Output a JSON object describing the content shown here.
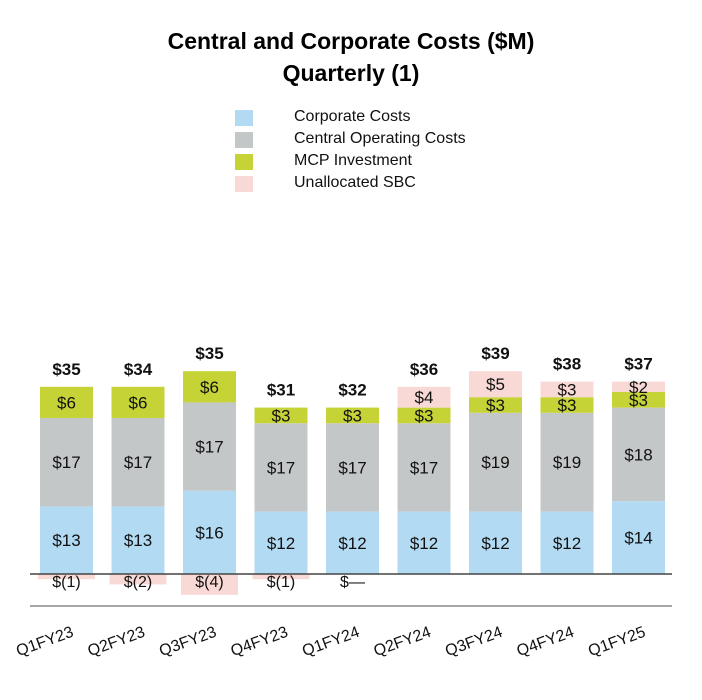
{
  "chart_data": {
    "type": "bar",
    "stacked": true,
    "title": "Central and Corporate Costs ($M)",
    "subtitle": "Quarterly (1)",
    "categories": [
      "Q1FY23",
      "Q2FY23",
      "Q3FY23",
      "Q4FY23",
      "Q1FY24",
      "Q2FY24",
      "Q3FY24",
      "Q4FY24",
      "Q1FY25"
    ],
    "series": [
      {
        "name": "Corporate Costs",
        "color": "#b3daf3",
        "values": [
          13,
          13,
          16,
          12,
          12,
          12,
          12,
          12,
          14
        ],
        "labels": [
          "$13",
          "$13",
          "$16",
          "$12",
          "$12",
          "$12",
          "$12",
          "$12",
          "$14"
        ]
      },
      {
        "name": "Central Operating Costs",
        "color": "#c4c7c7",
        "values": [
          17,
          17,
          17,
          17,
          17,
          17,
          19,
          19,
          18
        ],
        "labels": [
          "$17",
          "$17",
          "$17",
          "$17",
          "$17",
          "$17",
          "$19",
          "$19",
          "$18"
        ]
      },
      {
        "name": "MCP Investment",
        "color": "#c5d337",
        "values": [
          6,
          6,
          6,
          3,
          3,
          3,
          3,
          3,
          3
        ],
        "labels": [
          "$6",
          "$6",
          "$6",
          "$3",
          "$3",
          "$3",
          "$3",
          "$3",
          "$3"
        ]
      },
      {
        "name": "Unallocated SBC",
        "color": "#f9d9d6",
        "values": [
          -1,
          -2,
          -4,
          -1,
          0,
          4,
          5,
          3,
          2
        ],
        "labels": [
          "$(1)",
          "$(2)",
          "$(4)",
          "$(1)",
          "$—",
          "$4",
          "$5",
          "$3",
          "$2"
        ]
      }
    ],
    "totals": [
      "$35",
      "$34",
      "$35",
      "$31",
      "$32",
      "$36",
      "$39",
      "$38",
      "$37"
    ],
    "xlabel": "",
    "ylabel": "",
    "grid": false,
    "legend_position": "top-center"
  }
}
